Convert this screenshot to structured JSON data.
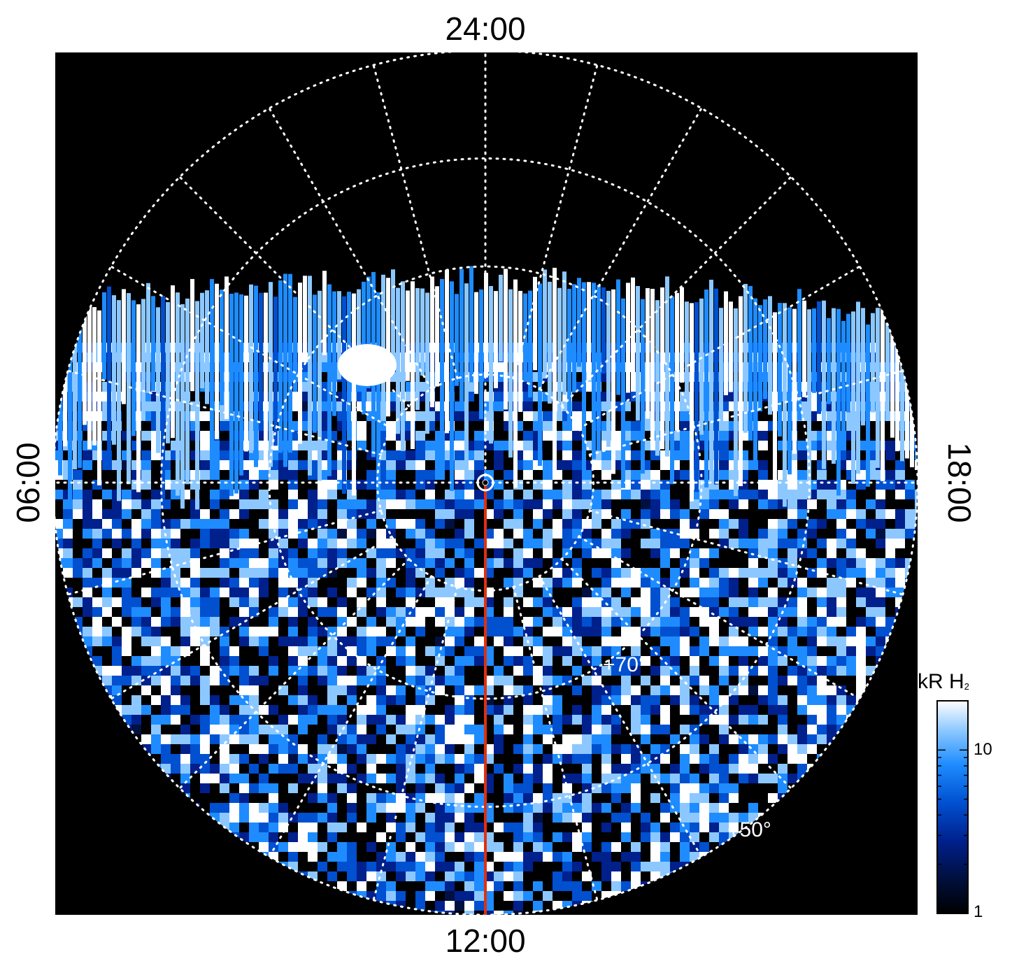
{
  "chart_data": {
    "type": "heatmap",
    "projection": "polar",
    "local_time_labels": {
      "top": "24:00",
      "bottom": "12:00",
      "left": "06:00",
      "right": "18:00"
    },
    "latitude_labels": [
      "+70°",
      "+50°"
    ],
    "latitude_circles_deg": [
      80,
      70,
      60,
      50
    ],
    "meridian_step_hours": 1,
    "colorbar": {
      "title_main": "kR H",
      "title_sub": "2",
      "scale": "log",
      "range": [
        1,
        20
      ],
      "tick_labels": [
        {
          "value": 1,
          "label": "1"
        },
        {
          "value": 10,
          "label": "10"
        }
      ],
      "colormap": [
        "#000000",
        "#001040",
        "#00208c",
        "#0050d0",
        "#1e8cff",
        "#8cc8ff",
        "#ffffff"
      ]
    },
    "features": {
      "meridian_line": {
        "local_time": "12:00",
        "color": "#e03010"
      },
      "pole_marker": "circle"
    },
    "grid": "on",
    "background": "#000000"
  }
}
